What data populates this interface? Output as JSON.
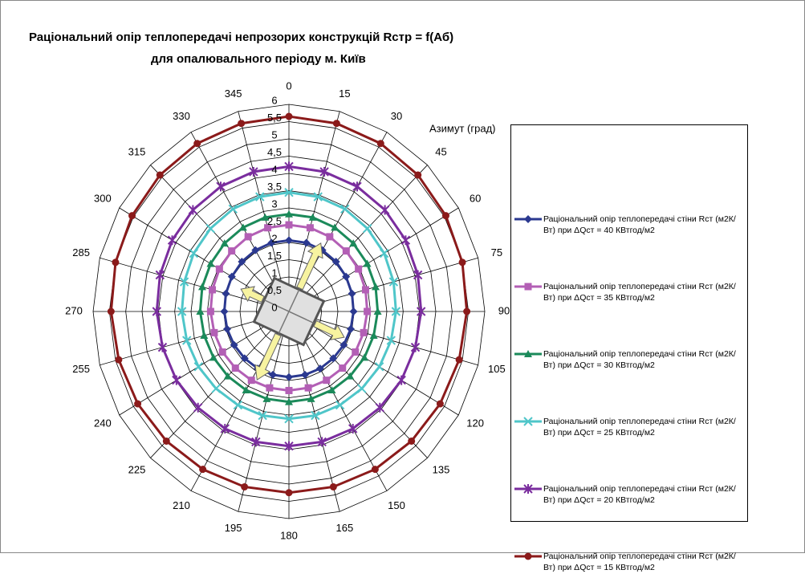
{
  "chart_data": {
    "type": "radar",
    "title": [
      "Раціональний опір теплопередачі непрозорих конструкцій Rстр = f(Аб)",
      "для опалювального періоду м. Київ"
    ],
    "axis_label": "Азимут (град)",
    "categories": [
      "0",
      "15",
      "30",
      "45",
      "60",
      "75",
      "90",
      "105",
      "120",
      "135",
      "150",
      "165",
      "180",
      "195",
      "210",
      "225",
      "240",
      "255",
      "270",
      "285",
      "300",
      "315",
      "330",
      "345"
    ],
    "rlim": [
      0,
      6
    ],
    "rticks": [
      0,
      {
        "value": 0.5,
        "label": "0,5"
      },
      1,
      {
        "value": 1.5,
        "label": "1,5"
      },
      2,
      {
        "value": 2.5,
        "label": "2,5"
      },
      3,
      {
        "value": 3.5,
        "label": "3,5"
      },
      4,
      {
        "value": 4.5,
        "label": "4,5"
      },
      5,
      {
        "value": 5.5,
        "label": "5,5"
      },
      6
    ],
    "grid": true,
    "series": [
      {
        "name": "Раціональний опір теплопередачі стіни Rст (м2К/Вт) при ΔQст = 40 КВтгод/м2",
        "color": "#2b3990",
        "marker": "diamond",
        "values": [
          2.06,
          2.06,
          2.05,
          2.04,
          2.02,
          2,
          1.98,
          1.96,
          1.94,
          1.92,
          1.91,
          1.9,
          1.9,
          1.9,
          1.91,
          1.92,
          1.94,
          1.96,
          1.98,
          2,
          2.02,
          2.04,
          2.05,
          2.06
        ]
      },
      {
        "name": "Раціональний опір теплопередачі стіни Rст (м2К/Вт) при ΔQст = 35 КВтгод/м2",
        "color": "#b35fb5",
        "marker": "square",
        "values": [
          2.51,
          2.51,
          2.5,
          2.48,
          2.46,
          2.43,
          2.4,
          2.37,
          2.35,
          2.32,
          2.3,
          2.29,
          2.29,
          2.29,
          2.3,
          2.32,
          2.35,
          2.37,
          2.4,
          2.43,
          2.46,
          2.48,
          2.5,
          2.51
        ]
      },
      {
        "name": "Раціональний опір теплопередачі стіни Rст (м2К/Вт) при ΔQст = 30 КВтгод/м2",
        "color": "#1b8a5a",
        "marker": "triangle",
        "values": [
          2.82,
          2.82,
          2.81,
          2.79,
          2.77,
          2.75,
          2.72,
          2.69,
          2.67,
          2.65,
          2.63,
          2.62,
          2.62,
          2.62,
          2.63,
          2.65,
          2.67,
          2.69,
          2.72,
          2.75,
          2.77,
          2.79,
          2.81,
          2.82
        ]
      },
      {
        "name": "Раціональний опір теплопередачі стіни Rст (м2К/Вт) при ΔQст = 25 КВтгод/м2",
        "color": "#4fc6c9",
        "marker": "x",
        "values": [
          3.45,
          3.44,
          3.43,
          3.4,
          3.37,
          3.32,
          3.28,
          3.24,
          3.2,
          3.16,
          3.13,
          3.12,
          3.11,
          3.12,
          3.13,
          3.16,
          3.2,
          3.24,
          3.28,
          3.32,
          3.37,
          3.4,
          3.43,
          3.44
        ]
      },
      {
        "name": "Раціональний опір теплопередачі стіни Rст (м2К/Вт) при ΔQст = 20 КВтгод/м2",
        "color": "#7a2d9e",
        "marker": "star",
        "values": [
          4.2,
          4.19,
          4.18,
          4.16,
          4.13,
          4.09,
          4.05,
          4.01,
          3.98,
          3.94,
          3.92,
          3.91,
          3.9,
          3.91,
          3.92,
          3.94,
          3.98,
          4.01,
          4.05,
          4.09,
          4.13,
          4.16,
          4.18,
          4.19
        ]
      },
      {
        "name": "Раціональний опір теплопередачі стіни Rст (м2К/Вт) при ΔQст = 15 КВтгод/м2",
        "color": "#8b1a1a",
        "marker": "circle",
        "values": [
          5.65,
          5.64,
          5.62,
          5.59,
          5.55,
          5.5,
          5.45,
          5.4,
          5.35,
          5.31,
          5.28,
          5.26,
          5.25,
          5.26,
          5.28,
          5.31,
          5.35,
          5.4,
          5.45,
          5.5,
          5.55,
          5.59,
          5.62,
          5.64
        ]
      }
    ]
  }
}
